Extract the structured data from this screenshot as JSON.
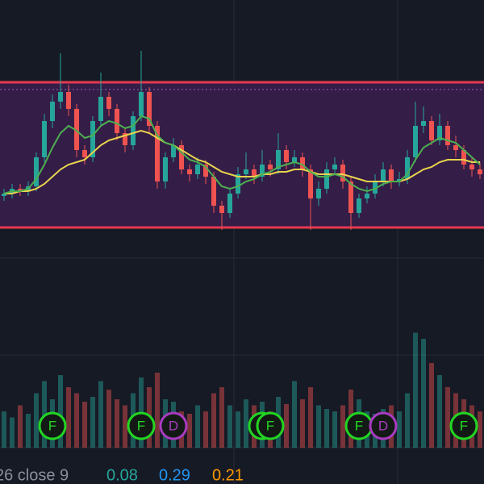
{
  "chart_data": {
    "type": "candlestick",
    "ylim": [
      0,
      100
    ],
    "up_color": "#26a69a",
    "down_color": "#ef5350",
    "open": [
      19,
      20,
      22,
      21,
      23,
      35,
      50,
      58,
      62,
      55,
      38,
      35,
      50,
      60,
      55,
      45,
      40,
      52,
      62,
      48,
      25,
      35,
      40,
      30,
      28,
      32,
      27,
      15,
      12,
      20,
      28,
      30,
      27,
      32,
      30,
      38,
      33,
      35,
      30,
      18,
      22,
      30,
      32,
      25,
      12,
      18,
      20,
      25,
      30,
      25,
      26,
      35,
      48,
      50,
      42,
      48,
      40,
      38,
      32,
      30
    ],
    "close": [
      20,
      22,
      21,
      23,
      35,
      50,
      58,
      62,
      55,
      38,
      35,
      50,
      60,
      55,
      45,
      40,
      52,
      62,
      48,
      25,
      35,
      40,
      30,
      28,
      32,
      27,
      15,
      12,
      20,
      28,
      30,
      27,
      32,
      30,
      38,
      33,
      35,
      30,
      18,
      22,
      30,
      32,
      25,
      12,
      18,
      20,
      25,
      30,
      25,
      26,
      35,
      48,
      50,
      42,
      48,
      40,
      38,
      32,
      30,
      28
    ],
    "high": [
      22,
      24,
      24,
      25,
      37,
      53,
      61,
      78,
      65,
      57,
      40,
      52,
      70,
      62,
      57,
      47,
      54,
      79,
      64,
      50,
      37,
      43,
      42,
      32,
      35,
      34,
      29,
      17,
      22,
      31,
      37,
      32,
      38,
      34,
      45,
      40,
      38,
      37,
      32,
      25,
      33,
      35,
      34,
      27,
      20,
      23,
      28,
      33,
      32,
      29,
      38,
      58,
      56,
      52,
      53,
      50,
      44,
      40,
      35,
      33
    ],
    "low": [
      17,
      18,
      19,
      19,
      21,
      33,
      47,
      55,
      52,
      35,
      32,
      33,
      48,
      52,
      42,
      37,
      38,
      50,
      45,
      22,
      22,
      33,
      28,
      25,
      26,
      24,
      12,
      5,
      10,
      18,
      26,
      24,
      25,
      27,
      28,
      30,
      31,
      27,
      5,
      15,
      20,
      28,
      22,
      5,
      10,
      16,
      18,
      23,
      22,
      23,
      24,
      33,
      45,
      40,
      40,
      38,
      35,
      30,
      27,
      26
    ],
    "moving_averages": [
      {
        "color": "#e8d44d",
        "values": [
          20,
          20,
          21,
          21,
          22,
          24,
          27,
          30,
          32,
          33,
          34,
          37,
          40,
          42,
          43,
          44,
          45,
          46,
          45,
          43,
          41,
          40,
          38,
          36,
          34,
          33,
          31,
          29,
          28,
          27,
          27,
          27,
          28,
          28,
          29,
          29,
          30,
          30,
          29,
          28,
          28,
          28,
          28,
          27,
          26,
          25,
          25,
          25,
          25,
          25,
          26,
          28,
          30,
          31,
          33,
          34,
          34,
          34,
          33,
          33
        ]
      },
      {
        "color": "#4caf50",
        "values": [
          20,
          21,
          21,
          22,
          26,
          32,
          39,
          45,
          48,
          46,
          43,
          44,
          48,
          50,
          49,
          47,
          48,
          52,
          51,
          44,
          41,
          40,
          37,
          34,
          33,
          31,
          27,
          23,
          22,
          23,
          25,
          26,
          28,
          29,
          31,
          32,
          33,
          32,
          29,
          27,
          27,
          28,
          27,
          24,
          22,
          21,
          22,
          24,
          25,
          25,
          28,
          34,
          39,
          41,
          43,
          42,
          41,
          38,
          35,
          32
        ]
      }
    ],
    "volume": {
      "ylim": [
        0,
        100
      ],
      "values": [
        30,
        25,
        35,
        28,
        45,
        55,
        40,
        60,
        50,
        45,
        38,
        42,
        55,
        48,
        40,
        35,
        45,
        58,
        50,
        62,
        40,
        38,
        30,
        28,
        35,
        30,
        45,
        50,
        35,
        30,
        40,
        35,
        38,
        30,
        42,
        36,
        55,
        40,
        50,
        35,
        32,
        30,
        35,
        48,
        40,
        30,
        28,
        32,
        35,
        30,
        45,
        95,
        90,
        70,
        60,
        50,
        45,
        40,
        35,
        30
      ]
    },
    "range_box": {
      "top": 66,
      "bottom": 6,
      "line": 63,
      "color": "#e53950",
      "fill": "#3a1f4e"
    },
    "events": [
      {
        "label": "F",
        "index": 6,
        "color": "#22d622"
      },
      {
        "label": "F",
        "index": 17,
        "color": "#22d622"
      },
      {
        "label": "D",
        "index": 21,
        "color": "#a93bc0"
      },
      {
        "label": "F",
        "index": 32,
        "color": "#22d622"
      },
      {
        "label": "F",
        "index": 33,
        "color": "#22d622"
      },
      {
        "label": "F",
        "index": 44,
        "color": "#22d622"
      },
      {
        "label": "D",
        "index": 47,
        "color": "#a93bc0"
      },
      {
        "label": "F",
        "index": 57,
        "color": "#22d622"
      }
    ],
    "legend_text": [
      {
        "text": "26 close 9",
        "color": "#8a8f9c"
      },
      {
        "text": "0.08",
        "color": "#26a69a"
      },
      {
        "text": "0.29",
        "color": "#2196f3"
      },
      {
        "text": "0.21",
        "color": "#ff9800"
      }
    ]
  }
}
